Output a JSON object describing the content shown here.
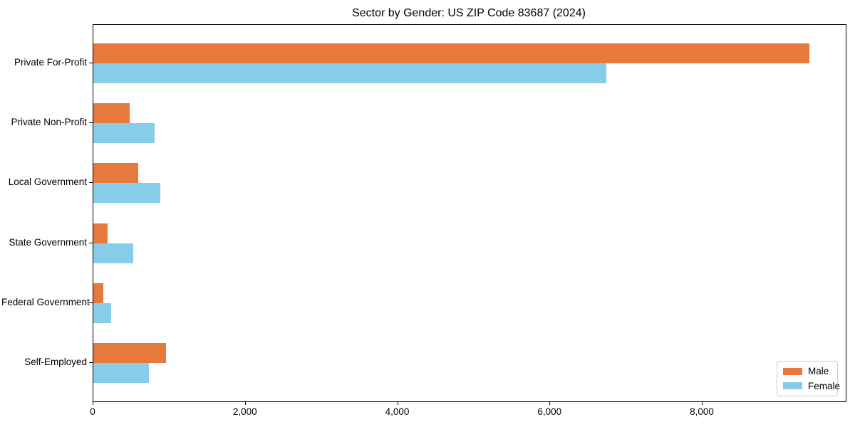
{
  "chart_data": {
    "type": "bar",
    "orientation": "horizontal",
    "title": "Sector by Gender: US ZIP Code 83687 (2024)",
    "categories": [
      "Private For-Profit",
      "Private Non-Profit",
      "Local Government",
      "State Government",
      "Federal Government",
      "Self-Employed"
    ],
    "series": [
      {
        "name": "Male",
        "color": "#E8793D",
        "values": [
          9400,
          480,
          590,
          190,
          130,
          950
        ]
      },
      {
        "name": "Female",
        "color": "#87CDEA",
        "values": [
          6740,
          800,
          875,
          520,
          230,
          730
        ]
      }
    ],
    "xlabel": "",
    "ylabel": "",
    "xlim": [
      0,
      9880
    ],
    "x_ticks": [
      0,
      2000,
      4000,
      6000,
      8000
    ],
    "x_tick_labels": [
      "0",
      "2,000",
      "4,000",
      "6,000",
      "8,000"
    ],
    "grid": false,
    "legend": {
      "position": "lower right",
      "entries": [
        "Male",
        "Female"
      ]
    }
  }
}
